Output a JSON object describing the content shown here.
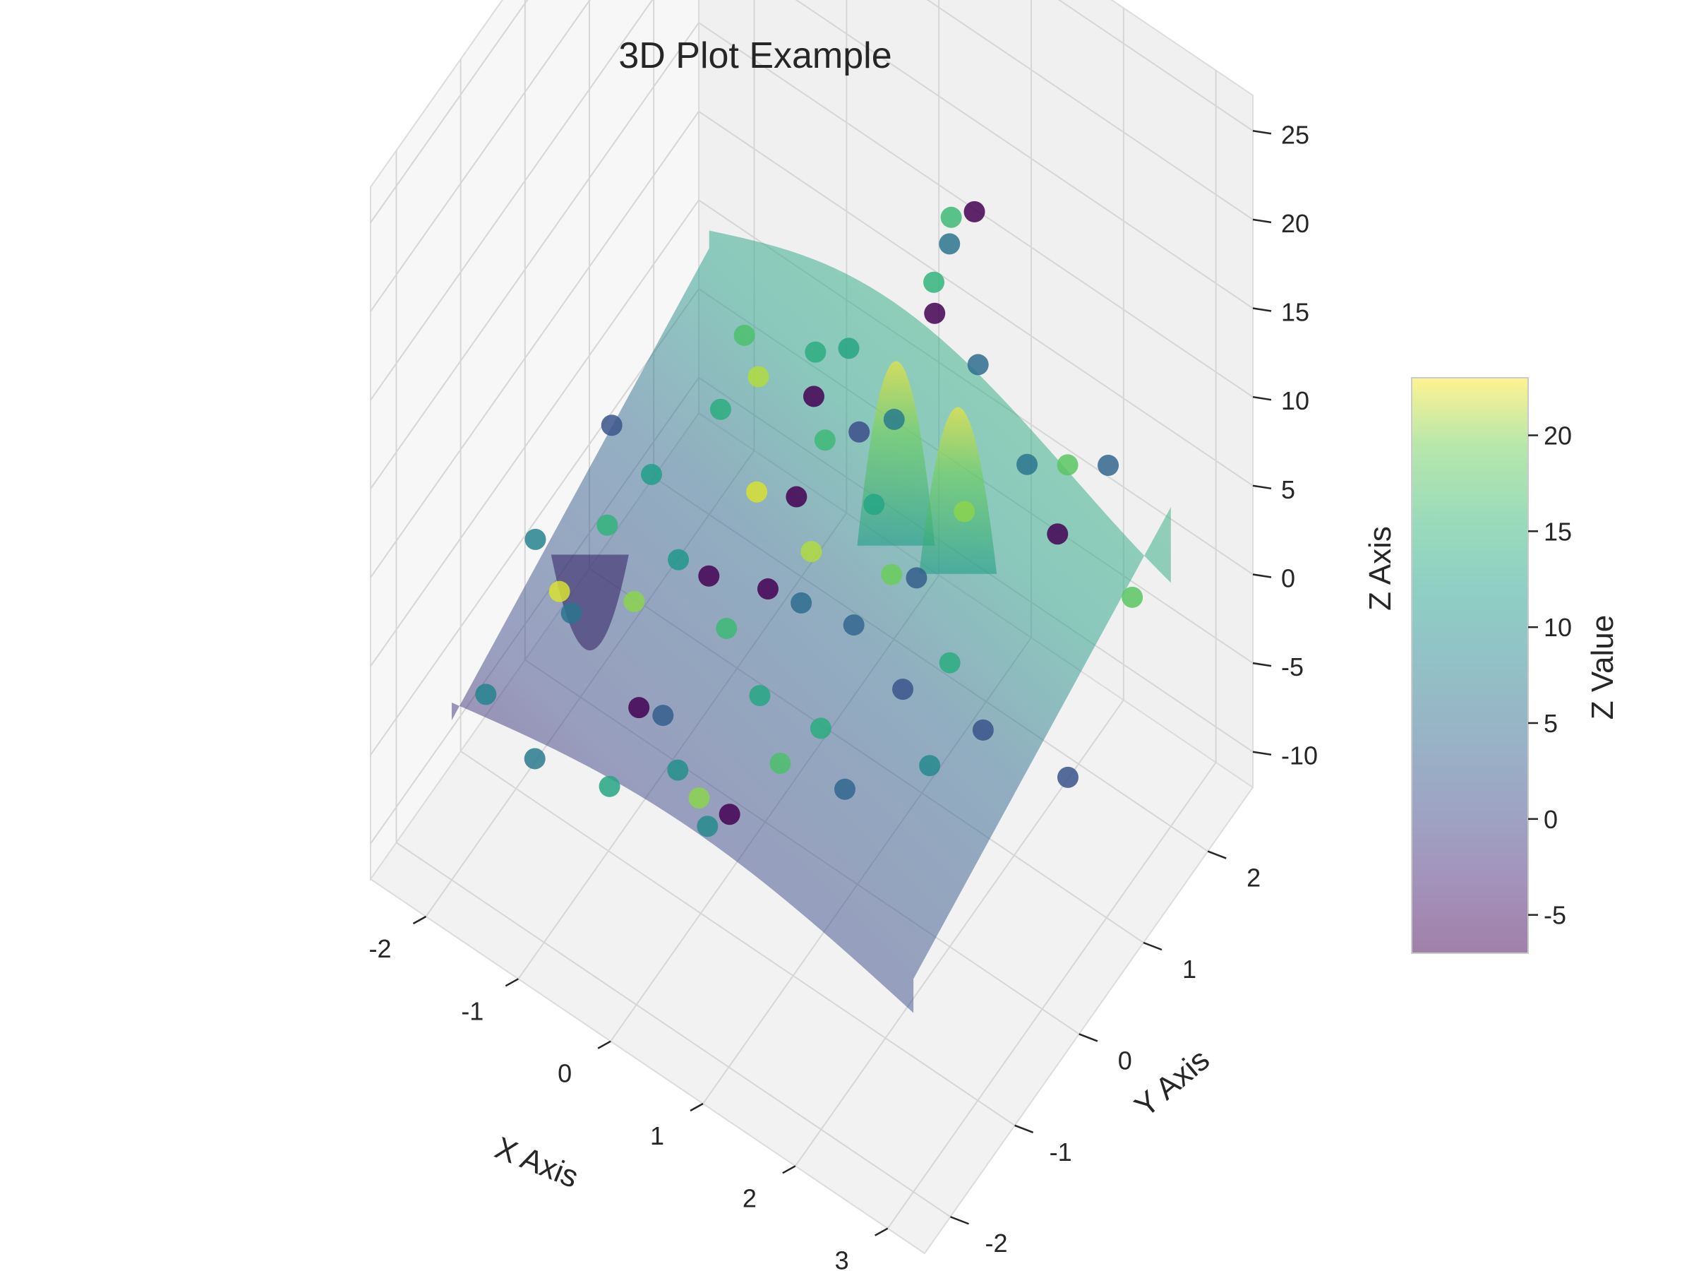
{
  "chart_data": {
    "type": "scatter",
    "subtype": "3d-surface-with-scatter",
    "title": "3D Plot Example",
    "xlabel": "X Axis",
    "ylabel": "Y Axis",
    "zlabel": "Z Axis",
    "xlim": [
      -2.6,
      3.4
    ],
    "ylim": [
      -2.4,
      2.7
    ],
    "zlim": [
      -12,
      27
    ],
    "x_ticks": [
      "-2",
      "-1",
      "0",
      "1",
      "2",
      "3"
    ],
    "y_ticks": [
      "-2",
      "-1",
      "0",
      "1",
      "2"
    ],
    "z_ticks": [
      "-10",
      "-5",
      "0",
      "5",
      "10",
      "15",
      "20",
      "25"
    ],
    "grid": true,
    "colormap": "viridis",
    "colorbar": {
      "label": "Z Value",
      "range": [
        -7,
        23
      ],
      "ticks": [
        "-5",
        "0",
        "5",
        "10",
        "15",
        "20"
      ],
      "position": "right"
    },
    "surface": {
      "x_range": [
        -2,
        3
      ],
      "y_range": [
        -2,
        2
      ],
      "peaks": [
        {
          "x": 1.0,
          "y": 0.6,
          "z": 24
        },
        {
          "x": 1.6,
          "y": 0.7,
          "z": 22
        },
        {
          "x": -1.2,
          "y": -1.0,
          "z": -6
        }
      ],
      "alpha": 0.5
    },
    "points": [
      {
        "x": -2.0,
        "y": -0.7,
        "z": 0.5,
        "c": 8
      },
      {
        "x": -1.7,
        "y": -1.9,
        "z": -1.0,
        "c": 8
      },
      {
        "x": -1.1,
        "y": -2.0,
        "z": -2.0,
        "c": 7
      },
      {
        "x": -1.4,
        "y": -1.0,
        "z": 0.0,
        "c": 6
      },
      {
        "x": -1.8,
        "y": 0.2,
        "z": 3.0,
        "c": 2
      },
      {
        "x": -1.3,
        "y": 0.1,
        "z": 2.5,
        "c": 12
      },
      {
        "x": -1.5,
        "y": -0.3,
        "z": 1.0,
        "c": 15
      },
      {
        "x": -1.0,
        "y": -0.6,
        "z": 0.0,
        "c": 20
      },
      {
        "x": -0.8,
        "y": -0.2,
        "z": 1.0,
        "c": 11
      },
      {
        "x": -0.6,
        "y": -1.1,
        "z": -2.0,
        "c": -7
      },
      {
        "x": -0.2,
        "y": -1.3,
        "z": 0.0,
        "c": 3
      },
      {
        "x": 0.1,
        "y": -1.5,
        "z": -1.0,
        "c": 10
      },
      {
        "x": 0.4,
        "y": -1.6,
        "z": -1.0,
        "c": 20
      },
      {
        "x": 0.8,
        "y": -1.7,
        "z": 0.0,
        "c": -7
      },
      {
        "x": 0.7,
        "y": -1.9,
        "z": 0.0,
        "c": 9
      },
      {
        "x": 1.0,
        "y": -1.2,
        "z": 1.0,
        "c": 17
      },
      {
        "x": 0.5,
        "y": -0.8,
        "z": 1.0,
        "c": 13
      },
      {
        "x": 0.0,
        "y": -0.6,
        "z": 2.0,
        "c": 16
      },
      {
        "x": -0.4,
        "y": -0.3,
        "z": 2.0,
        "c": -7
      },
      {
        "x": -0.9,
        "y": 0.6,
        "z": 5.0,
        "c": 14
      },
      {
        "x": -0.3,
        "y": 0.3,
        "z": 4.0,
        "c": 22
      },
      {
        "x": 0.2,
        "y": 0.2,
        "z": 6.0,
        "c": -7
      },
      {
        "x": 0.5,
        "y": 0.0,
        "z": 5.0,
        "c": 21
      },
      {
        "x": 0.3,
        "y": 0.5,
        "z": 8.0,
        "c": 16
      },
      {
        "x": 0.6,
        "y": 0.6,
        "z": 9.0,
        "c": 1
      },
      {
        "x": 0.9,
        "y": 0.4,
        "z": 7.0,
        "c": 13
      },
      {
        "x": 1.1,
        "y": -0.2,
        "z": 4.0,
        "c": 4
      },
      {
        "x": 1.3,
        "y": 0.1,
        "z": 6.0,
        "c": 19
      },
      {
        "x": 1.5,
        "y": 0.2,
        "z": 6.0,
        "c": 3
      },
      {
        "x": 1.7,
        "y": -0.3,
        "z": 3.0,
        "c": 2
      },
      {
        "x": 2.0,
        "y": 0.0,
        "z": 4.0,
        "c": 14
      },
      {
        "x": 2.2,
        "y": -0.6,
        "z": 2.0,
        "c": 9
      },
      {
        "x": 2.5,
        "y": -0.2,
        "z": 3.0,
        "c": 2
      },
      {
        "x": 1.2,
        "y": 0.9,
        "z": 18.0,
        "c": 15
      },
      {
        "x": 1.3,
        "y": 1.0,
        "z": 20.0,
        "c": 6
      },
      {
        "x": 1.5,
        "y": 1.1,
        "z": 22.0,
        "c": -7
      },
      {
        "x": 1.0,
        "y": 1.2,
        "z": 14.0,
        "c": -7
      },
      {
        "x": 1.4,
        "y": 1.3,
        "z": 12.0,
        "c": 5
      },
      {
        "x": 2.0,
        "y": 1.2,
        "z": 9.0,
        "c": 6
      },
      {
        "x": 2.3,
        "y": 1.4,
        "z": 9.0,
        "c": 18
      },
      {
        "x": 2.6,
        "y": 1.6,
        "z": 9.0,
        "c": 4
      },
      {
        "x": 2.4,
        "y": 1.1,
        "z": 7.0,
        "c": -7
      },
      {
        "x": 3.0,
        "y": 1.4,
        "z": 4.0,
        "c": 18
      },
      {
        "x": 3.0,
        "y": 0.4,
        "z": -1.0,
        "c": 2
      },
      {
        "x": 1.6,
        "y": 0.8,
        "z": 7.0,
        "c": 20
      },
      {
        "x": 0.0,
        "y": 1.3,
        "z": 8.0,
        "c": 13
      },
      {
        "x": -0.5,
        "y": 1.5,
        "z": 5.0,
        "c": 14
      },
      {
        "x": -1.2,
        "y": 1.4,
        "z": 4.0,
        "c": 17
      },
      {
        "x": -0.7,
        "y": 0.9,
        "z": 6.0,
        "c": 21
      },
      {
        "x": -0.1,
        "y": 0.9,
        "z": 7.0,
        "c": -7
      },
      {
        "x": 0.7,
        "y": 1.0,
        "z": 8.0,
        "c": 7
      },
      {
        "x": 0.1,
        "y": -0.1,
        "z": 2.0,
        "c": -7
      },
      {
        "x": -0.5,
        "y": -1.7,
        "z": -3.0,
        "c": 13
      },
      {
        "x": 1.3,
        "y": -1.0,
        "z": 3.0,
        "c": 14
      },
      {
        "x": 1.7,
        "y": -1.2,
        "z": 2.0,
        "c": 4
      },
      {
        "x": -1.6,
        "y": -0.9,
        "z": 0.0,
        "c": 22
      },
      {
        "x": 0.9,
        "y": 1.6,
        "z": 17.0,
        "c": 16
      },
      {
        "x": 0.6,
        "y": -0.3,
        "z": 4.0,
        "c": 5
      }
    ]
  }
}
